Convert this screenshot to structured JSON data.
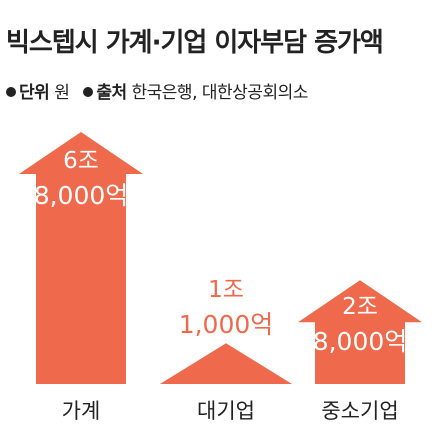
{
  "title": "빅스텝시 가계·기업 이자부담 증가액",
  "unit": {
    "label": "단위",
    "value": "원"
  },
  "source": {
    "label": "출처",
    "value": "한국은행, 대한상공회의소"
  },
  "colors": {
    "arrow": "#ef6a4d",
    "label_text": "#ffffff",
    "outside_label": "#ef6a4d",
    "category_text": "#222222"
  },
  "chart_data": {
    "type": "bar",
    "style": "upward arrows",
    "title": "빅스텝시 가계·기업 이자부담 증가액",
    "unit": "원",
    "categories": [
      "가계",
      "대기업",
      "중소기업"
    ],
    "values": [
      68000,
      11000,
      28000
    ],
    "value_unit": "억",
    "value_labels": [
      [
        "6조",
        "8,000억"
      ],
      [
        "1조",
        "1,000억"
      ],
      [
        "2조",
        "8,000억"
      ]
    ],
    "label_position": [
      "inside",
      "above",
      "inside"
    ],
    "source": "한국은행, 대한상공회의소"
  }
}
